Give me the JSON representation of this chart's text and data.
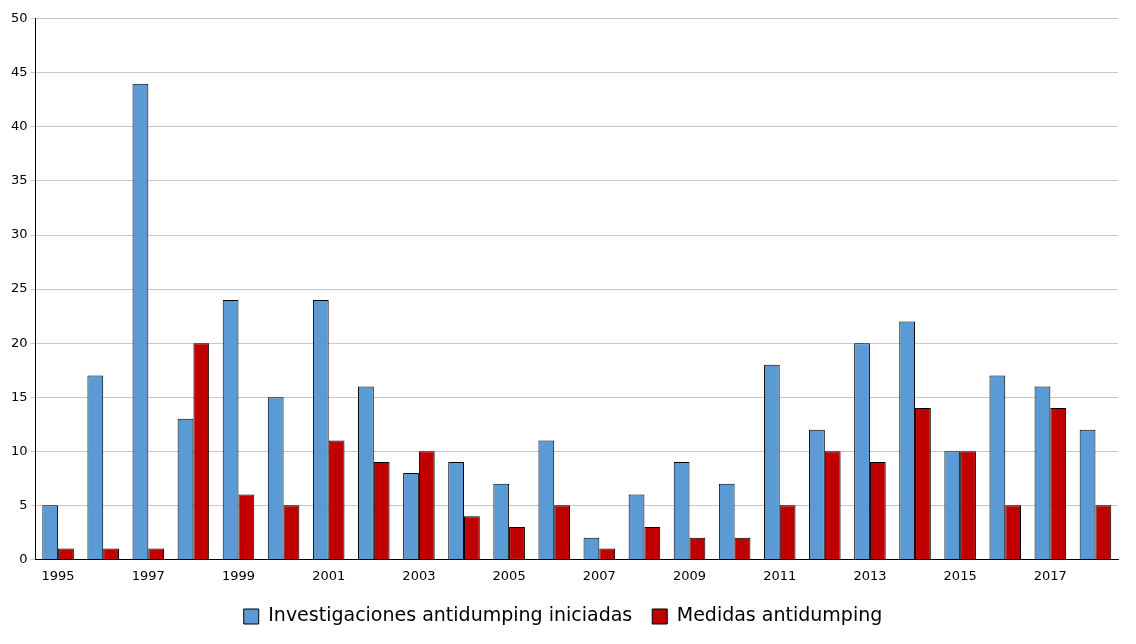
{
  "chart_data": {
    "type": "bar",
    "categories": [
      "1995",
      null,
      "1997",
      null,
      "1999",
      null,
      "2001",
      null,
      "2003",
      null,
      "2005",
      null,
      "2007",
      null,
      "2009",
      null,
      "2011",
      null,
      "2013",
      null,
      "2015",
      null,
      "2017",
      null
    ],
    "series": [
      {
        "name": "Investigaciones antidumping iniciadas",
        "color": "#5b9bd5",
        "values": [
          5,
          17,
          44,
          13,
          24,
          15,
          24,
          16,
          8,
          9,
          7,
          11,
          2,
          6,
          9,
          7,
          18,
          12,
          20,
          22,
          10,
          17,
          16,
          12
        ]
      },
      {
        "name": "Medidas antidumping",
        "color": "#c00000",
        "values": [
          1,
          1,
          1,
          20,
          6,
          5,
          11,
          9,
          10,
          4,
          3,
          5,
          1,
          3,
          2,
          2,
          5,
          10,
          9,
          14,
          10,
          5,
          14,
          5
        ]
      }
    ],
    "ylim": [
      0,
      50
    ],
    "yticks": [
      0,
      5,
      10,
      15,
      20,
      25,
      30,
      35,
      40,
      45,
      50
    ],
    "grid": "y",
    "legend": "bottom"
  }
}
